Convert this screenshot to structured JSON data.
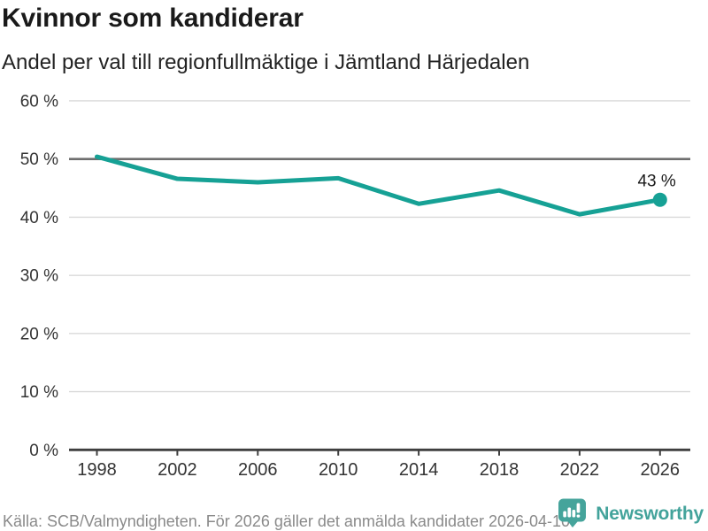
{
  "header": {
    "title": "Kvinnor som kandiderar",
    "subtitle": "Andel per val till regionfullmäktige i Jämtland Härjedalen"
  },
  "chart_data": {
    "type": "line",
    "title": "Kvinnor som kandiderar",
    "subtitle": "Andel per val till regionfullmäktige i Jämtland Härjedalen",
    "categories": [
      "1998",
      "2002",
      "2006",
      "2010",
      "2014",
      "2018",
      "2022",
      "2026"
    ],
    "values": [
      50.4,
      46.6,
      46.0,
      46.7,
      42.3,
      44.6,
      40.5,
      43
    ],
    "xlabel": "",
    "ylabel": "",
    "ylim": [
      0,
      60
    ],
    "yticks": [
      0,
      10,
      20,
      30,
      40,
      50,
      60
    ],
    "ytick_suffix": " %",
    "reference_line": 50,
    "grid": "horizontal",
    "legend": "none",
    "last_point_label": "43 %",
    "line_color": "#16a195",
    "axis_color": "#3f3f3f",
    "reference_line_color": "#6e6e6e",
    "gridline_color": "#d9d9d9"
  },
  "footer": {
    "source": "Källa: SCB/Valmyndigheten. För 2026 gäller det anmälda kandidater 2026-04-10.",
    "brand": "Newsworthy",
    "brand_icon": "bar-chart-speech-bubble-icon",
    "brand_color": "#43a39b"
  }
}
